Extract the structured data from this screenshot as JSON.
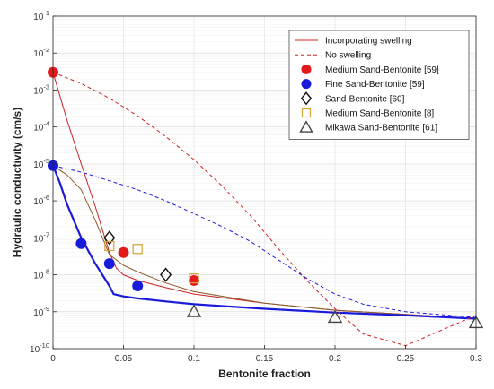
{
  "chart_data": {
    "type": "scatter",
    "xlabel": "Bentonite fraction",
    "ylabel": "Hydraulic conductivity (cm/s)",
    "xlim": [
      0,
      0.3
    ],
    "ylim": [
      1e-10,
      0.1
    ],
    "yscale": "log",
    "grid": true,
    "legend_position": "top-right",
    "x_ticks": [
      {
        "value": 0,
        "label": "0"
      },
      {
        "value": 0.05,
        "label": "0.05"
      },
      {
        "value": 0.1,
        "label": "0.1"
      },
      {
        "value": 0.15,
        "label": "0.15"
      },
      {
        "value": 0.2,
        "label": "0.2"
      },
      {
        "value": 0.25,
        "label": "0.25"
      },
      {
        "value": 0.3,
        "label": "0.3"
      }
    ],
    "y_ticks": [
      {
        "value": 1e-10,
        "base": "10",
        "exp": "-10"
      },
      {
        "value": 1e-09,
        "base": "10",
        "exp": "-9"
      },
      {
        "value": 1e-08,
        "base": "10",
        "exp": "-8"
      },
      {
        "value": 1e-07,
        "base": "10",
        "exp": "-7"
      },
      {
        "value": 1e-06,
        "base": "10",
        "exp": "-6"
      },
      {
        "value": 1e-05,
        "base": "10",
        "exp": "-5"
      },
      {
        "value": 0.0001,
        "base": "10",
        "exp": "-4"
      },
      {
        "value": 0.001,
        "base": "10",
        "exp": "-3"
      },
      {
        "value": 0.01,
        "base": "10",
        "exp": "-2"
      },
      {
        "value": 0.1,
        "base": "10",
        "exp": "-1"
      }
    ],
    "curves": [
      {
        "name": "Incorporating swelling",
        "style": "solid",
        "color": "#cc2222",
        "width": 1,
        "x": [
          0,
          0.01,
          0.02,
          0.03,
          0.04,
          0.045,
          0.05,
          0.06,
          0.08,
          0.1,
          0.15,
          0.2,
          0.25,
          0.3
        ],
        "y": [
          0.003,
          0.00015,
          1e-05,
          7e-07,
          4e-08,
          1.5e-08,
          1e-08,
          7e-09,
          4.5e-09,
          3e-09,
          1.7e-09,
          1.1e-09,
          8.5e-10,
          6.5e-10
        ]
      },
      {
        "name": "Incorporating swelling",
        "style": "solid",
        "color": "#8b5a2b",
        "width": 1,
        "x": [
          0,
          0.01,
          0.02,
          0.03,
          0.04,
          0.05,
          0.06,
          0.08,
          0.1,
          0.15,
          0.2,
          0.25,
          0.3
        ],
        "y": [
          9e-06,
          5e-06,
          2e-06,
          3e-07,
          3.5e-08,
          1.8e-08,
          1.2e-08,
          6e-09,
          3.5e-09,
          1.7e-09,
          1.1e-09,
          8.5e-10,
          6.5e-10
        ]
      },
      {
        "name": "Incorporating swelling",
        "style": "solid",
        "color": "#1a1adb",
        "width": 2.2,
        "x": [
          0,
          0.005,
          0.01,
          0.02,
          0.03,
          0.04,
          0.043,
          0.05,
          0.06,
          0.08,
          0.1,
          0.15,
          0.2,
          0.25,
          0.3
        ],
        "y": [
          9e-06,
          3e-06,
          8e-07,
          1e-07,
          2e-08,
          5e-09,
          3e-09,
          2.6e-09,
          2.3e-09,
          1.9e-09,
          1.6e-09,
          1.2e-09,
          9.5e-10,
          8e-10,
          6.5e-10
        ]
      },
      {
        "name": "No swelling",
        "style": "dashed",
        "color": "#cc2222",
        "width": 1,
        "x": [
          0,
          0.02,
          0.04,
          0.06,
          0.08,
          0.1,
          0.12,
          0.14,
          0.16,
          0.18,
          0.2,
          0.22,
          0.25,
          0.3
        ],
        "y": [
          0.003,
          0.0015,
          0.0006,
          0.0002,
          5.5e-05,
          1.3e-05,
          2.5e-06,
          4e-07,
          5e-08,
          7e-09,
          1.2e-09,
          2.5e-10,
          1.2e-10,
          8e-10
        ]
      },
      {
        "name": "No swelling",
        "style": "dashed",
        "color": "#1a1adb",
        "width": 1,
        "x": [
          0,
          0.02,
          0.04,
          0.06,
          0.08,
          0.1,
          0.12,
          0.14,
          0.16,
          0.18,
          0.2,
          0.22,
          0.25,
          0.3
        ],
        "y": [
          9e-06,
          6e-06,
          3.5e-06,
          2e-06,
          1e-06,
          4.5e-07,
          2e-07,
          8e-08,
          2.5e-08,
          8e-09,
          3e-09,
          1.6e-09,
          1e-09,
          7e-10
        ]
      }
    ],
    "series": [
      {
        "name": "Medium Sand-Bentonite [59]",
        "marker": "filled-circle",
        "color": "#e41a1a",
        "x": [
          0,
          0.05,
          0.1
        ],
        "y": [
          0.003,
          4e-08,
          7e-09
        ]
      },
      {
        "name": "Fine Sand-Bentonite [59]",
        "marker": "filled-circle",
        "color": "#1a1adb",
        "x": [
          0,
          0.02,
          0.04,
          0.06
        ],
        "y": [
          9e-06,
          7e-08,
          2e-08,
          5e-09
        ]
      },
      {
        "name": "Sand-Bentonite [60]",
        "marker": "open-diamond",
        "color": "#111111",
        "x": [
          0.04,
          0.08
        ],
        "y": [
          1e-07,
          1e-08
        ]
      },
      {
        "name": "Medium Sand-Bentonite [8]",
        "marker": "open-square",
        "color": "#d4a437",
        "x": [
          0.04,
          0.06,
          0.1
        ],
        "y": [
          6e-08,
          5e-08,
          8e-09
        ]
      },
      {
        "name": "Mikawa Sand-Bentonite [61]",
        "marker": "open-triangle",
        "color": "#444444",
        "x": [
          0.1,
          0.2,
          0.3
        ],
        "y": [
          1e-09,
          7e-10,
          5e-10
        ]
      }
    ],
    "legend": [
      {
        "label": "Incorporating swelling",
        "kind": "line",
        "style": "solid",
        "color": "#cc2222"
      },
      {
        "label": "No swelling",
        "kind": "line",
        "style": "dashed",
        "color": "#cc2222"
      },
      {
        "label": "Medium Sand-Bentonite [59]",
        "kind": "marker",
        "marker": "filled-circle",
        "color": "#e41a1a"
      },
      {
        "label": "Fine Sand-Bentonite [59]",
        "kind": "marker",
        "marker": "filled-circle",
        "color": "#1a1adb"
      },
      {
        "label": "Sand-Bentonite [60]",
        "kind": "marker",
        "marker": "open-diamond",
        "color": "#111111"
      },
      {
        "label": "Medium Sand-Bentonite [8]",
        "kind": "marker",
        "marker": "open-square",
        "color": "#d4a437"
      },
      {
        "label": "Mikawa Sand-Bentonite [61]",
        "kind": "marker",
        "marker": "open-triangle",
        "color": "#444444"
      }
    ]
  }
}
